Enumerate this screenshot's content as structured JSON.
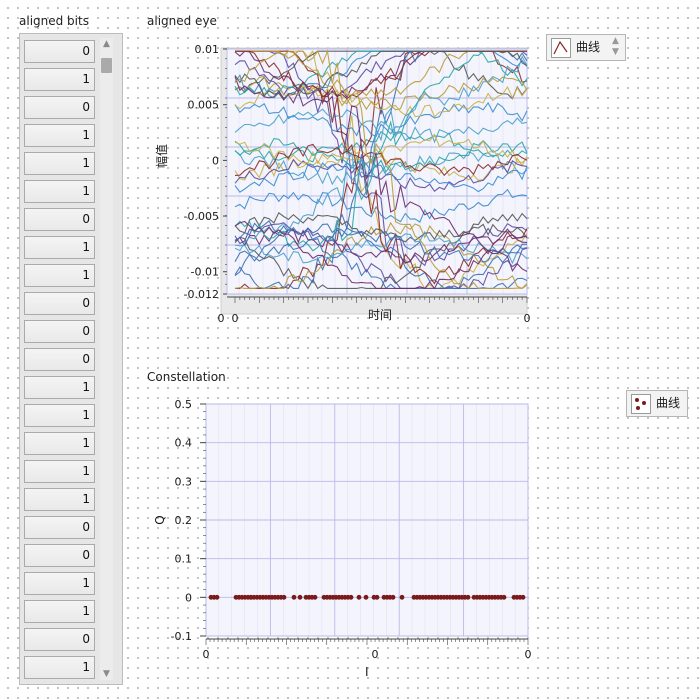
{
  "aligned_bits": {
    "label": "aligned bits",
    "values": [
      "0",
      "1",
      "0",
      "1",
      "1",
      "1",
      "0",
      "1",
      "1",
      "0",
      "0",
      "0",
      "1",
      "1",
      "1",
      "1",
      "1",
      "0",
      "0",
      "1",
      "1",
      "0",
      "1"
    ]
  },
  "eye_graph": {
    "title": "aligned eye",
    "legend_label": "曲线",
    "chart_data": {
      "type": "line",
      "title": "aligned eye",
      "xlabel": "时间",
      "ylabel": "幅值",
      "ylim": [
        -0.012,
        0.01
      ],
      "y_ticks": [
        "0.01",
        "0.005",
        "0",
        "-0.005",
        "-0.01",
        "-0.012"
      ],
      "x_tick_labels": [
        "0",
        "0",
        "0"
      ],
      "grid": true,
      "legend": "top-right",
      "series_count": 40
    }
  },
  "constellation_graph": {
    "title": "Constellation",
    "legend_label": "曲线",
    "chart_data": {
      "type": "scatter",
      "title": "Constellation",
      "xlabel": "I",
      "ylabel": "Q",
      "ylim": [
        -0.1,
        0.5
      ],
      "y_ticks": [
        "0.5",
        "0.4",
        "0.3",
        "0.2",
        "0.1",
        "0",
        "-0.1"
      ],
      "x_tick_labels": [
        "0",
        "0",
        "0"
      ],
      "grid": true,
      "legend": "top-right",
      "points_y": 0,
      "point_color": "#7b1a1a"
    }
  },
  "colors": {
    "plot_bg": "#f4f5fc",
    "grid_major": "#b7b9ea",
    "grid_minor": "#dadcf5",
    "marker": "#7b1a1a"
  }
}
